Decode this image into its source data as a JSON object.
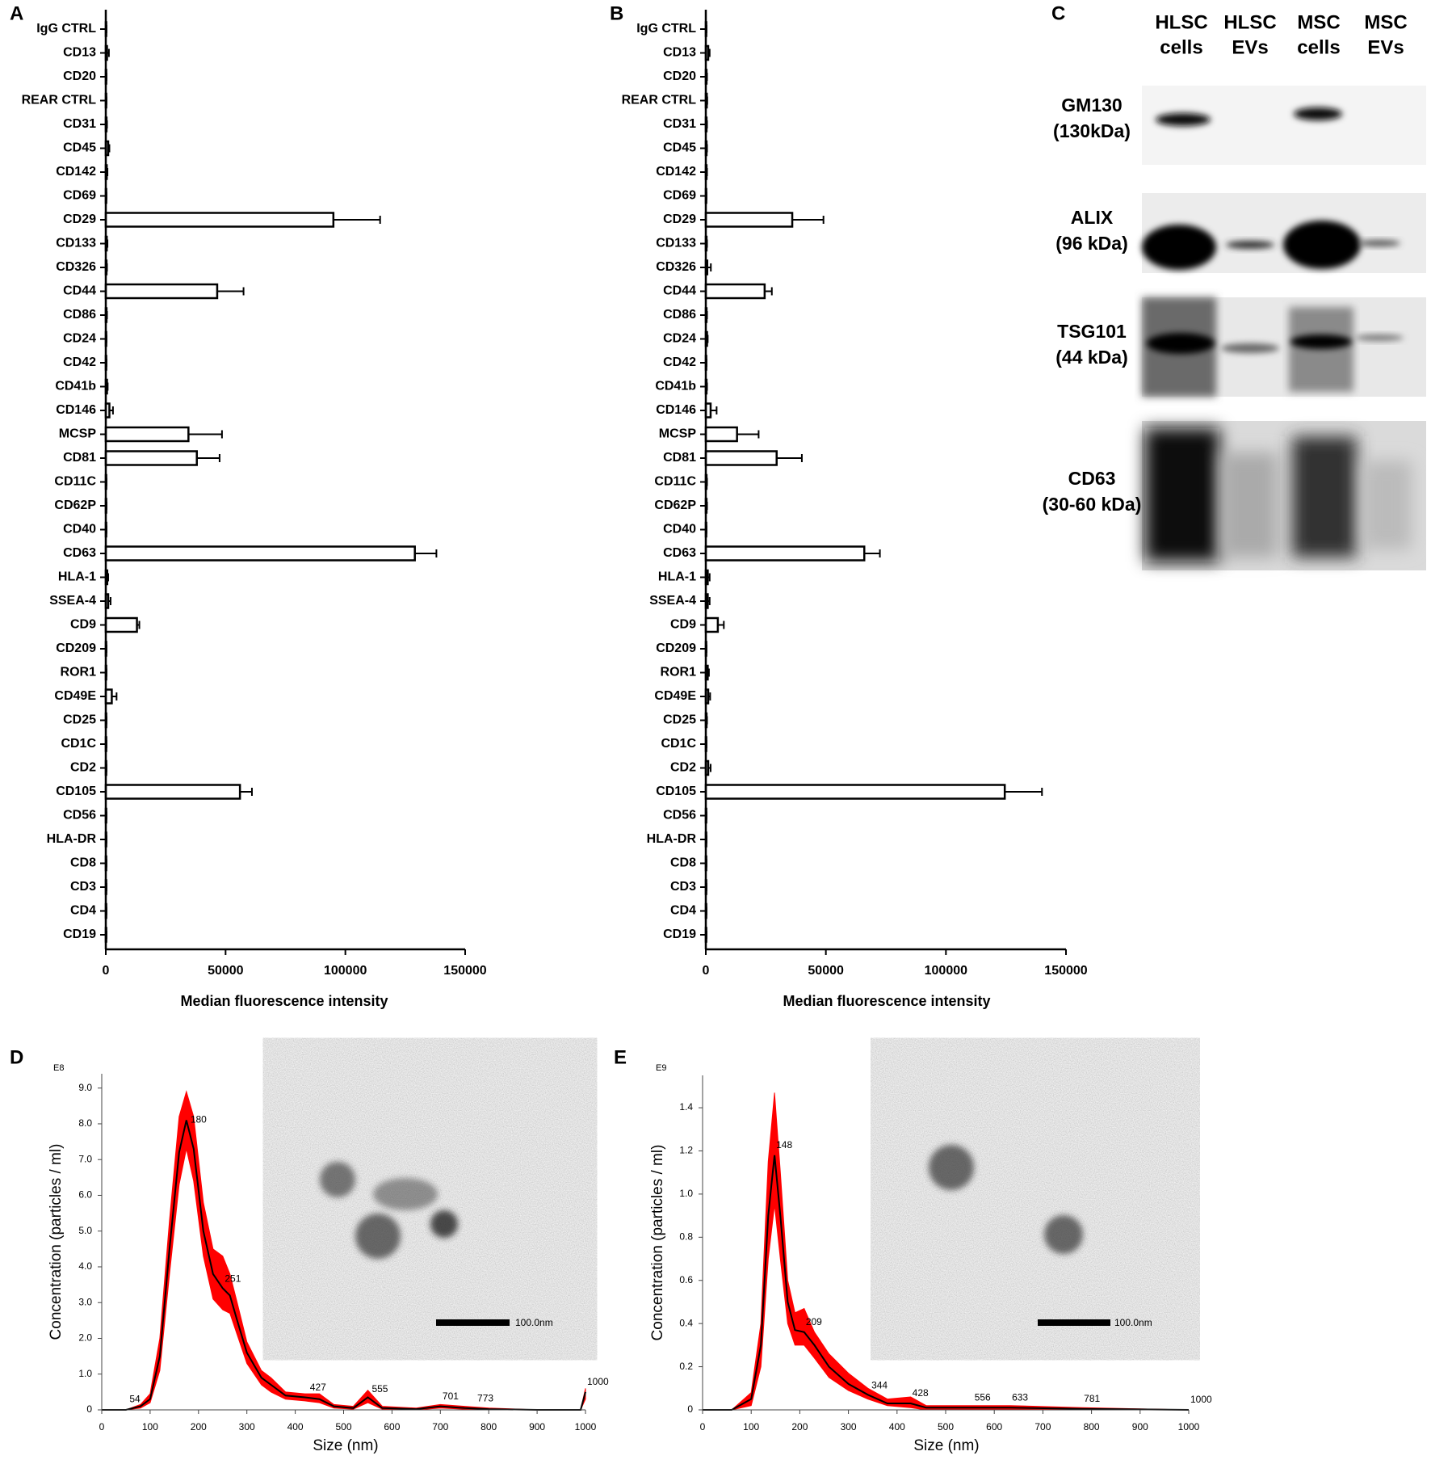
{
  "chart_data": [
    {
      "panel": "A",
      "type": "bar",
      "orientation": "horizontal",
      "x_label": "Median fluorescence intensity",
      "categories": [
        "IgG CTRL",
        "CD13",
        "CD20",
        "REAR CTRL",
        "CD31",
        "CD45",
        "CD142",
        "CD69",
        "CD29",
        "CD133",
        "CD326",
        "CD44",
        "CD86",
        "CD24",
        "CD42",
        "CD41b",
        "CD146",
        "MCSP",
        "CD81",
        "CD11C",
        "CD62P",
        "CD40",
        "CD63",
        "HLA-1",
        "SSEA-4",
        "CD9",
        "CD209",
        "ROR1",
        "CD49E",
        "CD25",
        "CD1C",
        "CD2",
        "CD105",
        "CD56",
        "HLA-DR",
        "CD8",
        "CD3",
        "CD4",
        "CD19"
      ],
      "values": [
        200,
        500,
        200,
        200,
        300,
        1000,
        400,
        200,
        95000,
        400,
        300,
        46500,
        300,
        200,
        200,
        500,
        1500,
        34500,
        38000,
        200,
        200,
        200,
        129000,
        600,
        1000,
        13000,
        200,
        200,
        2500,
        200,
        200,
        200,
        56000,
        200,
        200,
        200,
        200,
        200,
        200
      ],
      "errors": [
        100,
        800,
        100,
        100,
        200,
        500,
        300,
        100,
        19500,
        300,
        200,
        11000,
        200,
        100,
        100,
        300,
        1500,
        14000,
        9500,
        100,
        100,
        100,
        9000,
        400,
        1000,
        1000,
        100,
        100,
        2000,
        100,
        100,
        100,
        5000,
        100,
        100,
        100,
        100,
        100,
        100
      ],
      "color": "#ffffff",
      "edge_color": "#000000",
      "xlim": [
        0,
        150000
      ],
      "xticks": [
        0,
        50000,
        100000,
        150000
      ]
    },
    {
      "panel": "B",
      "type": "bar",
      "orientation": "horizontal",
      "x_label": "Median fluorescence intensity",
      "categories": [
        "IgG CTRL",
        "CD13",
        "CD20",
        "REAR CTRL",
        "CD31",
        "CD45",
        "CD142",
        "CD69",
        "CD29",
        "CD133",
        "CD326",
        "CD44",
        "CD86",
        "CD24",
        "CD42",
        "CD41b",
        "CD146",
        "MCSP",
        "CD81",
        "CD11C",
        "CD62P",
        "CD40",
        "CD63",
        "HLA-1",
        "SSEA-4",
        "CD9",
        "CD209",
        "ROR1",
        "CD49E",
        "CD25",
        "CD1C",
        "CD2",
        "CD105",
        "CD56",
        "HLA-DR",
        "CD8",
        "CD3",
        "CD4",
        "CD19"
      ],
      "values": [
        200,
        1000,
        300,
        400,
        300,
        300,
        300,
        200,
        36000,
        300,
        600,
        24500,
        300,
        500,
        200,
        300,
        2000,
        13000,
        29500,
        300,
        300,
        200,
        66000,
        800,
        800,
        5000,
        200,
        800,
        1000,
        300,
        200,
        1000,
        124500,
        200,
        200,
        200,
        200,
        200,
        200
      ],
      "errors": [
        100,
        600,
        200,
        200,
        200,
        200,
        200,
        100,
        13000,
        200,
        1500,
        3000,
        200,
        300,
        100,
        200,
        2500,
        9000,
        10500,
        200,
        200,
        100,
        6500,
        800,
        800,
        2500,
        100,
        500,
        800,
        200,
        100,
        1000,
        15500,
        100,
        100,
        100,
        100,
        100,
        100
      ],
      "color": "#ffffff",
      "edge_color": "#000000",
      "xlim": [
        0,
        150000
      ],
      "xticks": [
        0,
        50000,
        100000,
        150000
      ]
    },
    {
      "panel": "D",
      "type": "line",
      "exponent": "E8",
      "x_label": "Size (nm)",
      "y_label": "Concentration (particles / ml)",
      "inset_scale": "100.0nm",
      "x": [
        0,
        50,
        80,
        100,
        120,
        140,
        160,
        175,
        190,
        210,
        230,
        250,
        265,
        280,
        300,
        330,
        350,
        380,
        420,
        450,
        480,
        520,
        550,
        580,
        650,
        700,
        750,
        800,
        900,
        990,
        1000
      ],
      "series": [
        {
          "color": "#000000",
          "values": [
            0,
            0,
            0.1,
            0.3,
            1.5,
            4.5,
            7.2,
            8.1,
            7.3,
            5.0,
            3.8,
            3.4,
            3.2,
            2.5,
            1.6,
            0.9,
            0.7,
            0.4,
            0.35,
            0.3,
            0.1,
            0.05,
            0.35,
            0.05,
            0.02,
            0.1,
            0.05,
            0.02,
            0,
            0,
            0.5
          ]
        }
      ],
      "band": {
        "color": "#ff0000",
        "low": [
          0,
          0,
          0.05,
          0.2,
          1.1,
          3.8,
          6.3,
          7.3,
          6.4,
          4.3,
          3.1,
          2.8,
          2.7,
          2.1,
          1.3,
          0.7,
          0.5,
          0.3,
          0.25,
          0.2,
          0.05,
          0.02,
          0.2,
          0.02,
          0,
          0.05,
          0.02,
          0,
          0,
          0,
          0.3
        ],
        "high": [
          0,
          0,
          0.15,
          0.45,
          2.0,
          5.3,
          8.2,
          8.9,
          8.2,
          5.8,
          4.5,
          4.3,
          3.8,
          3.0,
          1.9,
          1.1,
          0.9,
          0.5,
          0.45,
          0.45,
          0.15,
          0.1,
          0.55,
          0.1,
          0.05,
          0.15,
          0.1,
          0.05,
          0,
          0,
          0.6
        ]
      },
      "peaks": [
        54,
        180,
        251,
        427,
        555,
        701,
        773,
        1000
      ],
      "peak_color": "#1a1aff",
      "xlim": [
        0,
        1000
      ],
      "xticks": [
        0,
        100,
        200,
        300,
        400,
        500,
        600,
        700,
        800,
        900,
        1000
      ],
      "ylim": [
        0,
        9.4
      ],
      "yticks": [
        0,
        {
          "value": 1,
          "label": "1.0"
        },
        {
          "value": 2,
          "label": "2.0"
        },
        {
          "value": 3,
          "label": "3.0"
        },
        {
          "value": 4,
          "label": "4.0"
        },
        {
          "value": 5,
          "label": "5.0"
        },
        {
          "value": 6,
          "label": "6.0"
        },
        {
          "value": 7,
          "label": "7.0"
        },
        {
          "value": 8,
          "label": "8.0"
        },
        {
          "value": 9,
          "label": "9.0"
        }
      ]
    },
    {
      "panel": "E",
      "type": "line",
      "exponent": "E9",
      "x_label": "Size (nm)",
      "y_label": "Concentration (particles / ml)",
      "inset_scale": "100.0nm",
      "x": [
        0,
        60,
        100,
        120,
        135,
        148,
        160,
        175,
        190,
        209,
        230,
        260,
        300,
        340,
        380,
        428,
        460,
        556,
        633,
        781,
        1000
      ],
      "series": [
        {
          "color": "#000000",
          "values": [
            0,
            0,
            0.05,
            0.3,
            0.9,
            1.18,
            0.9,
            0.5,
            0.37,
            0.36,
            0.3,
            0.2,
            0.12,
            0.07,
            0.03,
            0.03,
            0.01,
            0.01,
            0.01,
            0.005,
            0
          ]
        }
      ],
      "band": {
        "color": "#ff0000",
        "low": [
          0,
          0,
          0.02,
          0.2,
          0.7,
          0.95,
          0.7,
          0.4,
          0.3,
          0.3,
          0.24,
          0.15,
          0.09,
          0.05,
          0.02,
          0.01,
          0,
          0,
          0,
          0,
          0
        ],
        "high": [
          0,
          0,
          0.08,
          0.4,
          1.15,
          1.47,
          1.1,
          0.6,
          0.45,
          0.47,
          0.36,
          0.26,
          0.17,
          0.1,
          0.05,
          0.06,
          0.02,
          0.02,
          0.02,
          0.01,
          0
        ]
      },
      "peaks": [
        148,
        209,
        344,
        428,
        556,
        633,
        781,
        1000
      ],
      "peak_color": "#1a1aff",
      "xlim": [
        0,
        1000
      ],
      "xticks": [
        0,
        100,
        200,
        300,
        400,
        500,
        600,
        700,
        800,
        900,
        1000
      ],
      "ylim": [
        0,
        1.55
      ],
      "yticks": [
        0,
        0.2,
        0.4,
        0.6,
        0.8,
        {
          "value": 1,
          "label": "1.0"
        },
        1.2,
        1.4
      ]
    }
  ],
  "blot": {
    "panel": "C",
    "columns": [
      [
        "HLSC",
        "cells"
      ],
      [
        "HLSC",
        "EVs"
      ],
      [
        "MSC",
        "cells"
      ],
      [
        "MSC",
        "EVs"
      ]
    ],
    "rows": [
      [
        "GM130",
        "(130kDa)"
      ],
      [
        "ALIX",
        "(96 kDa)"
      ],
      [
        "TSG101",
        "(44 kDa)"
      ],
      [
        "CD63",
        "(30-60 kDa)"
      ]
    ]
  }
}
